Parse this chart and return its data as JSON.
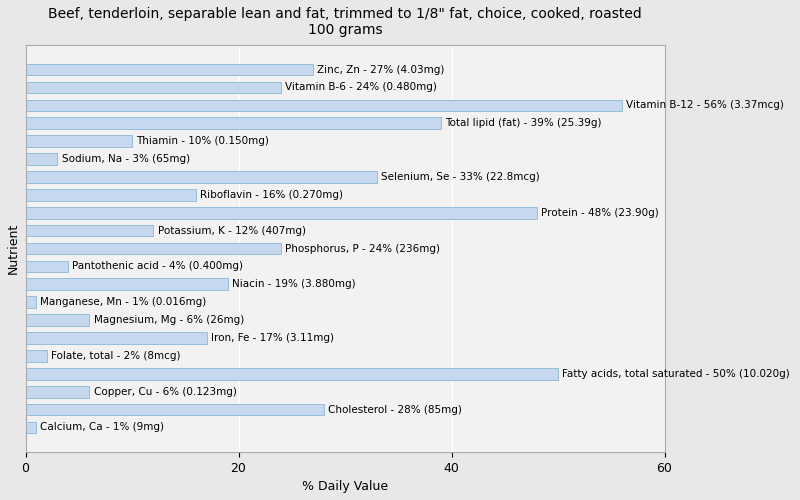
{
  "title": "Beef, tenderloin, separable lean and fat, trimmed to 1/8\" fat, choice, cooked, roasted\n100 grams",
  "xlabel": "% Daily Value",
  "ylabel": "Nutrient",
  "nutrients": [
    "Calcium, Ca - 1% (9mg)",
    "Cholesterol - 28% (85mg)",
    "Copper, Cu - 6% (0.123mg)",
    "Fatty acids, total saturated - 50% (10.020g)",
    "Folate, total - 2% (8mcg)",
    "Iron, Fe - 17% (3.11mg)",
    "Magnesium, Mg - 6% (26mg)",
    "Manganese, Mn - 1% (0.016mg)",
    "Niacin - 19% (3.880mg)",
    "Pantothenic acid - 4% (0.400mg)",
    "Phosphorus, P - 24% (236mg)",
    "Potassium, K - 12% (407mg)",
    "Protein - 48% (23.90g)",
    "Riboflavin - 16% (0.270mg)",
    "Selenium, Se - 33% (22.8mcg)",
    "Sodium, Na - 3% (65mg)",
    "Thiamin - 10% (0.150mg)",
    "Total lipid (fat) - 39% (25.39g)",
    "Vitamin B-12 - 56% (3.37mcg)",
    "Vitamin B-6 - 24% (0.480mg)",
    "Zinc, Zn - 27% (4.03mg)"
  ],
  "values": [
    1,
    28,
    6,
    50,
    2,
    17,
    6,
    1,
    19,
    4,
    24,
    12,
    48,
    16,
    33,
    3,
    10,
    39,
    56,
    24,
    27
  ],
  "bar_color": "#c5d8ee",
  "bar_edge_color": "#7aafd4",
  "background_color": "#e8e8e8",
  "plot_bg_color": "#f2f2f2",
  "xlim": [
    0,
    60
  ],
  "title_fontsize": 10,
  "axis_label_fontsize": 9,
  "tick_fontsize": 9,
  "bar_label_fontsize": 7.5
}
